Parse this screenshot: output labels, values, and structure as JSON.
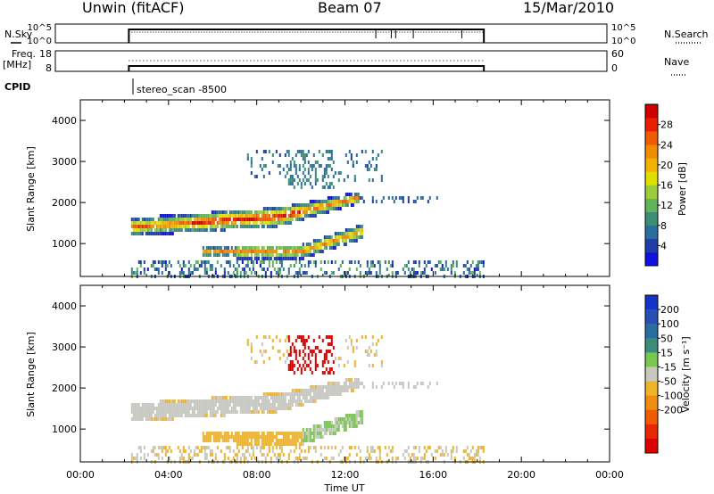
{
  "header": {
    "radar": "Unwin (fitACF)",
    "beam": "Beam 07",
    "date": "15/Mar/2010"
  },
  "top_panels": {
    "nsky_label": "N.Sky",
    "nsearch_label": "N.Search",
    "nsky_ticks": [
      "10^5",
      "10^0"
    ],
    "freq_label_1": "Freq.",
    "freq_label_2": "[MHz]",
    "freq_ticks": [
      "18",
      "8"
    ],
    "nave_ticks": [
      "60",
      "0"
    ],
    "nave_label": "Nave",
    "cpid_label": "CPID",
    "cpid_value": "stereo_scan -8500"
  },
  "colors": {
    "power": [
      "#1010e0",
      "#1e3caa",
      "#2a6ea0",
      "#3c8c78",
      "#60b45a",
      "#9ccc3c",
      "#e0e000",
      "#f0b400",
      "#f08c00",
      "#f05a00",
      "#e81e00",
      "#d00000"
    ],
    "velocity": [
      "#1434c8",
      "#2850b4",
      "#2a6ea0",
      "#3c8c78",
      "#78c850",
      "#c8c8c0",
      "#f0b428",
      "#f08c14",
      "#f05a00",
      "#e82800",
      "#dc0000"
    ]
  },
  "chart_data": [
    {
      "type": "heatmap",
      "name": "Power",
      "xlabel": "",
      "ylabel": "Slant Range [km]",
      "x_range_hours": [
        0,
        24
      ],
      "ylim": [
        200,
        4500
      ],
      "y_ticks": [
        1000,
        2000,
        3000,
        4000
      ],
      "colorbar_label": "Power [dB]",
      "colorbar_ticks": [
        4,
        8,
        12,
        16,
        20,
        24,
        28
      ],
      "colorbar_range": [
        0,
        32
      ],
      "data_window_hours": [
        2.2,
        18.3
      ],
      "features": [
        {
          "desc": "main echo band",
          "start": [
            2.3,
            1300
          ],
          "end": [
            9.0,
            1650
          ],
          "peak_dB": 24
        },
        {
          "desc": "lower echo",
          "time_range": [
            5.5,
            12.8
          ],
          "range_km": [
            650,
            1400
          ],
          "peak_dB": 22
        },
        {
          "desc": "upper scatter",
          "time_range": [
            7.5,
            13.7
          ],
          "range_km": [
            2600,
            3300
          ],
          "peak_dB": 8
        },
        {
          "desc": "ground noise",
          "time_range": [
            2.2,
            18.3
          ],
          "range_km": [
            200,
            550
          ],
          "peak_dB": 8
        }
      ]
    },
    {
      "type": "heatmap",
      "name": "Velocity",
      "xlabel": "Time UT",
      "ylabel": "Slant Range [km]",
      "x_range_hours": [
        0,
        24
      ],
      "x_ticks": [
        "00:00",
        "04:00",
        "08:00",
        "12:00",
        "16:00",
        "20:00",
        "00:00"
      ],
      "ylim": [
        200,
        4500
      ],
      "y_ticks": [
        1000,
        2000,
        3000,
        4000
      ],
      "colorbar_label": "Velocity [m s⁻¹]",
      "colorbar_ticks": [
        200,
        100,
        50,
        15,
        -15,
        -50,
        -100,
        -200
      ],
      "colorbar_range": [
        -250,
        250
      ],
      "data_window_hours": [
        2.2,
        18.3
      ],
      "features": [
        {
          "desc": "main band near zero velocity",
          "time_range": [
            2.3,
            12.5
          ],
          "range_km": [
            1200,
            2400
          ],
          "velocity": 0
        },
        {
          "desc": "lower echo negative velocity",
          "time_range": [
            5.5,
            10.0
          ],
          "range_km": [
            600,
            1000
          ],
          "velocity": -40
        },
        {
          "desc": "lower echo positive velocity",
          "time_range": [
            9.5,
            12.8
          ],
          "range_km": [
            1200,
            1500
          ],
          "velocity": 50
        },
        {
          "desc": "strong negative velocity patch",
          "time_range": [
            9.4,
            11.5
          ],
          "range_km": [
            2200,
            3300
          ],
          "velocity": -200
        }
      ]
    }
  ]
}
